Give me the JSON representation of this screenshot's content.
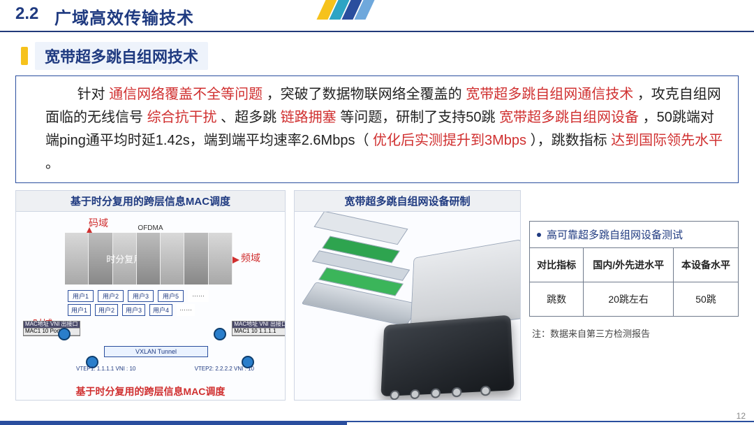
{
  "header": {
    "section_no": "2.2",
    "section_title": "广域高效传输技术",
    "accent_colors": [
      "#f6c21c",
      "#2da4c4",
      "#2a4e9e",
      "#6fa8dc"
    ]
  },
  "subtitle": "宽带超多跳自组网技术",
  "paragraph": {
    "p1a": "针对",
    "p1b_red": "通信网络覆盖不全等问题",
    "p1c": "，突破了数据物联网络全覆盖的",
    "p1d_red": "宽带超多跳自组网通信技术",
    "p1e": "，攻克自组网面临的无线信号",
    "p1f_red": "综合抗干扰",
    "p1g": "、超多跳",
    "p1h_red": "链路拥塞",
    "p1i": "等问题，研制了支持50跳",
    "p1j_red": "宽带超多跳自组网设备",
    "p1k": "，50跳端对端ping通平均时延1.42s，端到端平均速率2.6Mbps（",
    "p1l_red": "优化后实测提升到3Mbps",
    "p1m": "），跳数指标",
    "p1n_red": "达到国际领先水平",
    "p1o": "。"
  },
  "left_panel": {
    "title": "基于时分复用的跨层信息MAC调度",
    "ofdma": "OFDMA",
    "tdm_label": "时分复用",
    "code_domain": "码域",
    "freq_domain": "频域",
    "time_domain": "时域",
    "users_top": [
      "用户1",
      "用户2",
      "用户3",
      "用户5"
    ],
    "users_bot": [
      "用户1",
      "用户2",
      "用户3",
      "用户4"
    ],
    "ellipsis": "……",
    "tunnel": "VXLAN Tunnel",
    "mac_tbl_head": "MAC地址  VNI  出接口",
    "mac_row1": "MAC1    10    Port1",
    "mac_row2": "MAC1    10    1.1.1.1",
    "vtep1": "VTEP1: 1.1.1.1\nVNI : 10",
    "vtep2": "VTEP2: 2.2.2.2\nVNI : 10",
    "port_lbl": "Port1",
    "caption": "基于时分复用的跨层信息MAC调度"
  },
  "mid_panel": {
    "title": "宽带超多跳自组网设备研制"
  },
  "right_panel": {
    "title": "高可靠超多跳自组网设备测试",
    "columns": [
      "对比指标",
      "国内/外先进水平",
      "本设备水平"
    ],
    "rows": [
      [
        "跳数",
        "20跳左右",
        "50跳"
      ]
    ],
    "note": "注：数据来自第三方检测报告"
  },
  "page_number": "12",
  "theme": {
    "primary": "#1f3a80",
    "rule": "#2a4e9e",
    "highlight_bg": "#eef3fb",
    "red": "#d03030",
    "yellow": "#f6c21c"
  }
}
